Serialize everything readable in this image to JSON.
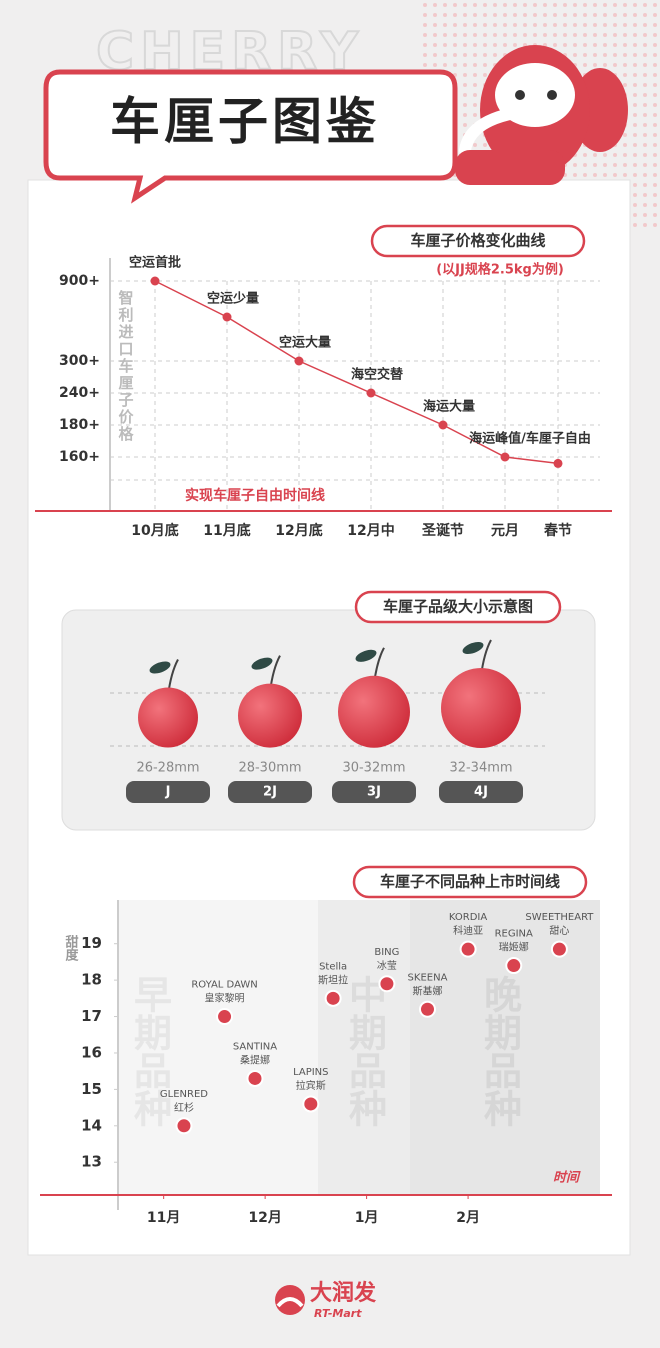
{
  "header": {
    "title": "车厘子图鉴",
    "background_word": "CHERRY"
  },
  "chart_data": [
    {
      "type": "line",
      "title": "车厘子价格变化曲线",
      "subtitle": "(以JJ规格2.5kg为例)",
      "y_label": "智利进口车厘子价格",
      "annotation": "实现车厘子自由时间线",
      "color": "#d9434f",
      "categories": [
        "10月底",
        "11月底",
        "12月底",
        "12月中",
        "圣诞节",
        "元月",
        "春节"
      ],
      "values": [
        900,
        630,
        300,
        240,
        180,
        160,
        156
      ],
      "point_labels": [
        "空运首批",
        "空运少量",
        "空运大量",
        "海空交替",
        "海运大量",
        "海运峰值/车厘子自由",
        null
      ],
      "yticks": [
        {
          "value": 900,
          "label": "900+"
        },
        {
          "value": 300,
          "label": "300+"
        },
        {
          "value": 240,
          "label": "240+"
        },
        {
          "value": 180,
          "label": "180+"
        },
        {
          "value": 160,
          "label": "160+"
        }
      ],
      "grid": true
    },
    {
      "type": "scatter",
      "title": "车厘子不同品种上市时间线",
      "y_label": "甜度",
      "x_label": "时间",
      "color": "#d9434f",
      "xlim": [
        10.55,
        15.3
      ],
      "xticks": [
        {
          "value": 11,
          "label": "11月"
        },
        {
          "value": 12,
          "label": "12月"
        },
        {
          "value": 13,
          "label": "1月"
        },
        {
          "value": 14,
          "label": "2月"
        }
      ],
      "ylim": [
        12.1,
        20.2
      ],
      "yticks": [
        13,
        14,
        15,
        16,
        17,
        18,
        19
      ],
      "periods": [
        "早期品种",
        "中期品种",
        "晚期品种"
      ],
      "names": [
        "GLENRED",
        "ROYAL DAWN",
        "SANTINA",
        "LAPINS",
        "Stella",
        "BING",
        "SKEENA",
        "KORDIA",
        "REGINA",
        "SWEETHEART"
      ],
      "names_zh": [
        "红杉",
        "皇家黎明",
        "桑提娜",
        "拉宾斯",
        "斯坦拉",
        "冰莹",
        "斯基娜",
        "科迪亚",
        "瑞姬娜",
        "甜心"
      ],
      "x": [
        11.2,
        11.6,
        11.9,
        12.45,
        12.67,
        13.2,
        13.6,
        14.0,
        14.45,
        14.9
      ],
      "values": [
        14,
        17,
        15.3,
        14.6,
        17.5,
        17.9,
        17.2,
        18.85,
        18.4,
        18.85
      ]
    }
  ],
  "size_guide": {
    "title": "车厘子品级大小示意图",
    "sizes": [
      "26-28mm",
      "28-30mm",
      "30-32mm",
      "32-34mm"
    ],
    "grades": [
      "J",
      "2J",
      "3J",
      "4J"
    ]
  },
  "footer": {
    "brand": "大润发",
    "brand_en": "RT-Mart"
  }
}
